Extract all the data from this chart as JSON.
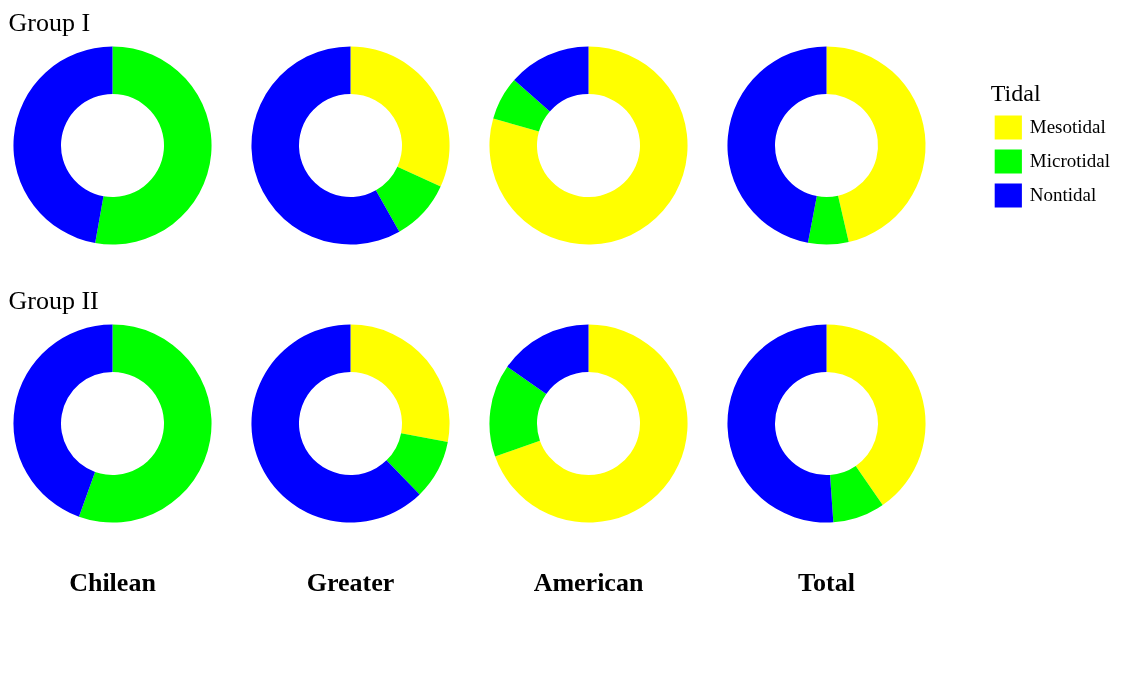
{
  "chart_data": [
    {
      "type": "donut",
      "title": "Group I",
      "categories": [
        null,
        null
      ],
      "values": [
        52.8,
        47.2
      ],
      "colors": [
        "#00ff00",
        "#0000ff"
      ]
    },
    {
      "type": "donut",
      "categories": [
        null,
        null,
        null
      ],
      "values": [
        31.8,
        10.0,
        58.2
      ],
      "colors": [
        "#ffff00",
        "#00ff00",
        "#0000ff"
      ]
    },
    {
      "type": "donut",
      "categories": [
        null,
        null,
        null
      ],
      "values": [
        79.4,
        7.1,
        13.5
      ],
      "colors": [
        "#ffff00",
        "#00ff00",
        "#0000ff"
      ]
    },
    {
      "type": "donut",
      "categories": [
        "Mesotidal",
        "Microtidal",
        "Nontidal"
      ],
      "values": [
        46.4,
        6.6,
        47.0
      ],
      "colors": [
        "#ffff00",
        "#00ff00",
        "#0000ff"
      ],
      "legend": "right",
      "legend_title": "Tidal"
    },
    {
      "type": "donut",
      "title": "Group II",
      "xlabel": "Chilean",
      "categories": [
        null,
        null
      ],
      "values": [
        55.5,
        44.5
      ],
      "colors": [
        "#00ff00",
        "#0000ff"
      ]
    },
    {
      "type": "donut",
      "xlabel": "Greater",
      "categories": [
        null,
        null,
        null
      ],
      "values": [
        28.0,
        9.7,
        62.3
      ],
      "colors": [
        "#ffff00",
        "#00ff00",
        "#0000ff"
      ]
    },
    {
      "type": "donut",
      "xlabel": "American",
      "categories": [
        null,
        null,
        null
      ],
      "values": [
        69.6,
        15.1,
        15.3
      ],
      "colors": [
        "#ffff00",
        "#00ff00",
        "#0000ff"
      ]
    },
    {
      "type": "donut",
      "xlabel": "Total",
      "categories": [
        null,
        null,
        null
      ],
      "values": [
        40.4,
        8.5,
        51.1
      ],
      "colors": [
        "#ffff00",
        "#00ff00",
        "#0000ff"
      ]
    }
  ]
}
